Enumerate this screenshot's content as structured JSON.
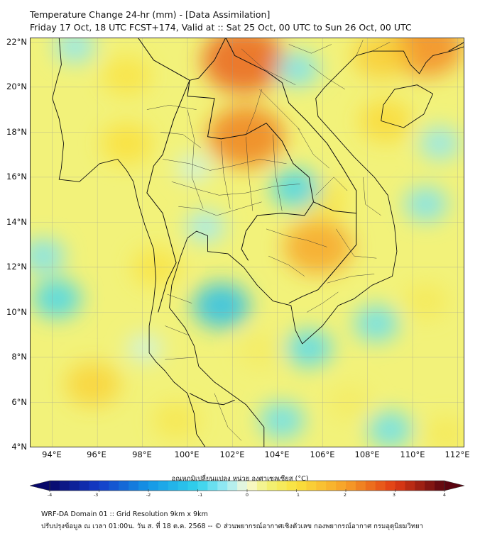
{
  "title_line1": "Temperature Change 24-hr (mm) - [Data Assimilation]",
  "title_line2": "Friday 17 Oct, 18 UTC FCST+174, Valid at :: Sat 25 Oct, 00 UTC to Sun 26 Oct, 00 UTC",
  "lat_labels": [
    "22°N",
    "20°N",
    "18°N",
    "16°N",
    "14°N",
    "12°N",
    "10°N",
    "8°N",
    "6°N",
    "4°N"
  ],
  "lon_labels": [
    "94°E",
    "96°E",
    "98°E",
    "100°E",
    "102°E",
    "104°E",
    "106°E",
    "108°E",
    "110°E",
    "112°E"
  ],
  "colorbar": {
    "title": "อุณหภูมิเปลี่ยนแปลง หน่วย องศาเซลเซียส (°C)",
    "tick_labels": [
      "-4",
      "-3",
      "-2",
      "-1",
      "0",
      "1",
      "2",
      "3",
      "4"
    ],
    "min": -4,
    "max": 4
  },
  "footer_line1": "WRF-DA Domain 01 :: Grid Resolution 9km x 9km",
  "footer_line2": "ปรับปรุงข้อมูล ณ เวลา 01:00น. วัน ส. ที่ 18 ต.ค. 2568 -- © ส่วนพยากรณ์อากาศเชิงตัวเลข กองพยากรณ์อากาศ กรมอุตุนิยมวิทยา",
  "map": {
    "lon_range": [
      93,
      112.3
    ],
    "lat_range": [
      4,
      22.2
    ],
    "anomalies": [
      {
        "lon": 102.5,
        "lat": 21.2,
        "value": 2.6
      },
      {
        "lon": 102.6,
        "lat": 17.8,
        "value": 2.3
      },
      {
        "lon": 105.8,
        "lat": 12.9,
        "value": 1.9
      },
      {
        "lon": 110.6,
        "lat": 21.8,
        "value": 2.2
      },
      {
        "lon": 108.6,
        "lat": 21.4,
        "value": 1.3
      },
      {
        "lon": 108.8,
        "lat": 18.5,
        "value": 1.1
      },
      {
        "lon": 97.3,
        "lat": 17.5,
        "value": 1.0
      },
      {
        "lon": 97.3,
        "lat": 20.5,
        "value": 0.9
      },
      {
        "lon": 98.6,
        "lat": 12.0,
        "value": 0.9
      },
      {
        "lon": 95.8,
        "lat": 6.8,
        "value": 1.2
      },
      {
        "lon": 103.2,
        "lat": 8.3,
        "value": 0.6
      },
      {
        "lon": 107.2,
        "lat": 6.0,
        "value": 0.6
      },
      {
        "lon": 110.6,
        "lat": 10.5,
        "value": 0.7
      },
      {
        "lon": 106.0,
        "lat": 15.0,
        "value": 0.9
      },
      {
        "lon": 99.5,
        "lat": 5.2,
        "value": 0.8
      },
      {
        "lon": 111.5,
        "lat": 4.6,
        "value": 0.7
      },
      {
        "lon": 101.5,
        "lat": 10.3,
        "value": -1.3
      },
      {
        "lon": 104.8,
        "lat": 15.5,
        "value": -0.9
      },
      {
        "lon": 94.2,
        "lat": 10.6,
        "value": -0.9
      },
      {
        "lon": 93.6,
        "lat": 12.5,
        "value": -0.6
      },
      {
        "lon": 105.4,
        "lat": 8.4,
        "value": -0.8
      },
      {
        "lon": 108.4,
        "lat": 9.5,
        "value": -0.7
      },
      {
        "lon": 104.2,
        "lat": 5.2,
        "value": -0.7
      },
      {
        "lon": 109.0,
        "lat": 4.8,
        "value": -0.7
      },
      {
        "lon": 111.2,
        "lat": 17.5,
        "value": -0.5
      },
      {
        "lon": 110.6,
        "lat": 14.8,
        "value": -0.6
      },
      {
        "lon": 95.0,
        "lat": 21.8,
        "value": -0.5
      },
      {
        "lon": 104.9,
        "lat": 20.8,
        "value": -0.6
      },
      {
        "lon": 100.8,
        "lat": 13.8,
        "value": -0.4
      },
      {
        "lon": 100.3,
        "lat": 16.4,
        "value": -0.2
      },
      {
        "lon": 98.1,
        "lat": 8.4,
        "value": -0.2
      }
    ],
    "coastlines": [
      [
        [
          94.3,
          22.2
        ],
        [
          94.4,
          21.0
        ],
        [
          94.2,
          20.3
        ],
        [
          94.0,
          19.5
        ],
        [
          94.3,
          18.6
        ],
        [
          94.5,
          17.5
        ],
        [
          94.4,
          16.4
        ],
        [
          94.3,
          15.9
        ],
        [
          95.2,
          15.8
        ],
        [
          96.1,
          16.6
        ],
        [
          96.9,
          16.8
        ],
        [
          97.3,
          16.3
        ],
        [
          97.6,
          15.8
        ],
        [
          97.8,
          14.9
        ],
        [
          98.1,
          13.9
        ],
        [
          98.5,
          12.8
        ],
        [
          98.6,
          11.5
        ],
        [
          98.5,
          10.5
        ],
        [
          98.3,
          9.4
        ],
        [
          98.3,
          8.2
        ],
        [
          98.6,
          7.8
        ],
        [
          99.0,
          7.4
        ],
        [
          99.4,
          6.9
        ],
        [
          100.0,
          6.4
        ],
        [
          100.3,
          5.5
        ],
        [
          100.4,
          4.6
        ],
        [
          100.8,
          4.0
        ]
      ],
      [
        [
          103.4,
          4.0
        ],
        [
          103.4,
          4.9
        ],
        [
          102.6,
          5.9
        ],
        [
          101.9,
          6.4
        ],
        [
          101.2,
          6.9
        ],
        [
          100.5,
          7.6
        ],
        [
          100.3,
          8.5
        ],
        [
          99.9,
          9.3
        ],
        [
          99.2,
          10.2
        ],
        [
          99.3,
          11.2
        ],
        [
          99.7,
          12.5
        ],
        [
          100.0,
          13.3
        ],
        [
          100.4,
          13.6
        ],
        [
          100.9,
          13.4
        ],
        [
          100.9,
          12.7
        ],
        [
          101.8,
          12.6
        ],
        [
          102.5,
          12.0
        ],
        [
          103.1,
          11.2
        ],
        [
          103.8,
          10.5
        ],
        [
          104.6,
          10.3
        ],
        [
          104.8,
          9.2
        ],
        [
          105.1,
          8.6
        ],
        [
          106.0,
          9.4
        ],
        [
          106.7,
          10.3
        ],
        [
          107.4,
          10.6
        ],
        [
          108.2,
          11.2
        ],
        [
          109.1,
          11.6
        ],
        [
          109.3,
          12.7
        ],
        [
          109.2,
          13.8
        ],
        [
          108.9,
          15.2
        ],
        [
          108.3,
          16.0
        ],
        [
          107.4,
          16.9
        ],
        [
          106.6,
          17.8
        ],
        [
          105.8,
          18.7
        ],
        [
          105.7,
          19.5
        ],
        [
          106.1,
          20.0
        ],
        [
          106.8,
          20.7
        ],
        [
          107.5,
          21.4
        ],
        [
          108.2,
          21.6
        ],
        [
          108.7,
          21.6
        ],
        [
          109.6,
          21.6
        ],
        [
          109.9,
          21.0
        ],
        [
          110.3,
          20.6
        ],
        [
          110.6,
          21.1
        ],
        [
          110.9,
          21.4
        ],
        [
          111.7,
          21.6
        ],
        [
          112.3,
          21.8
        ]
      ],
      [
        [
          108.7,
          19.2
        ],
        [
          108.6,
          18.5
        ],
        [
          109.6,
          18.2
        ],
        [
          110.5,
          18.8
        ],
        [
          110.9,
          19.7
        ],
        [
          110.2,
          20.1
        ],
        [
          109.2,
          19.9
        ],
        [
          108.7,
          19.2
        ]
      ]
    ],
    "borders": [
      [
        [
          97.8,
          22.2
        ],
        [
          98.5,
          21.2
        ],
        [
          100.1,
          20.3
        ],
        [
          100.5,
          20.4
        ],
        [
          101.2,
          21.2
        ],
        [
          101.7,
          22.2
        ]
      ],
      [
        [
          100.1,
          20.3
        ],
        [
          100.0,
          19.6
        ],
        [
          101.2,
          19.5
        ],
        [
          100.9,
          17.8
        ],
        [
          101.5,
          17.7
        ],
        [
          102.6,
          17.9
        ],
        [
          103.5,
          18.4
        ],
        [
          104.2,
          17.6
        ],
        [
          104.7,
          16.6
        ],
        [
          105.4,
          16.0
        ],
        [
          105.6,
          14.9
        ],
        [
          105.2,
          14.3
        ],
        [
          104.2,
          14.4
        ],
        [
          103.1,
          14.3
        ],
        [
          102.6,
          13.6
        ],
        [
          102.4,
          12.8
        ],
        [
          102.7,
          12.3
        ]
      ],
      [
        [
          105.6,
          14.9
        ],
        [
          106.5,
          14.5
        ],
        [
          107.5,
          14.4
        ],
        [
          107.5,
          13.0
        ],
        [
          106.4,
          11.7
        ],
        [
          105.8,
          11.0
        ],
        [
          105.1,
          10.7
        ],
        [
          104.5,
          10.4
        ]
      ],
      [
        [
          101.7,
          22.2
        ],
        [
          102.1,
          21.4
        ],
        [
          102.9,
          21.0
        ],
        [
          103.5,
          20.7
        ],
        [
          104.2,
          20.2
        ],
        [
          104.5,
          19.3
        ],
        [
          105.3,
          18.5
        ],
        [
          106.2,
          17.5
        ],
        [
          106.9,
          16.4
        ],
        [
          107.5,
          15.4
        ],
        [
          107.5,
          14.4
        ]
      ],
      [
        [
          98.5,
          16.5
        ],
        [
          98.9,
          17.0
        ],
        [
          99.4,
          18.6
        ],
        [
          100.1,
          20.3
        ]
      ],
      [
        [
          98.5,
          16.5
        ],
        [
          98.2,
          15.3
        ],
        [
          98.9,
          14.4
        ],
        [
          99.5,
          12.2
        ],
        [
          99.1,
          11.4
        ],
        [
          98.7,
          10.0
        ]
      ],
      [
        [
          100.1,
          6.4
        ],
        [
          100.9,
          6.0
        ],
        [
          101.6,
          5.9
        ],
        [
          102.1,
          6.1
        ]
      ],
      [
        [
          112.3,
          22.0
        ],
        [
          111.6,
          21.6
        ]
      ]
    ],
    "provinces": [
      [
        [
          98.2,
          19.0
        ],
        [
          99.2,
          19.2
        ],
        [
          100.4,
          19.0
        ]
      ],
      [
        [
          98.8,
          18.0
        ],
        [
          99.8,
          17.9
        ],
        [
          100.6,
          17.3
        ]
      ],
      [
        [
          98.9,
          16.8
        ],
        [
          100.1,
          16.6
        ],
        [
          101.0,
          16.3
        ],
        [
          102.0,
          16.5
        ],
        [
          103.2,
          16.8
        ],
        [
          104.4,
          16.6
        ]
      ],
      [
        [
          99.3,
          15.8
        ],
        [
          100.3,
          15.5
        ],
        [
          101.4,
          15.2
        ],
        [
          102.6,
          15.3
        ],
        [
          103.9,
          15.6
        ],
        [
          105.0,
          15.7
        ]
      ],
      [
        [
          99.6,
          14.7
        ],
        [
          100.5,
          14.6
        ],
        [
          101.3,
          14.3
        ],
        [
          102.3,
          14.6
        ],
        [
          103.3,
          14.9
        ]
      ],
      [
        [
          100.0,
          19.0
        ],
        [
          100.3,
          17.7
        ],
        [
          100.2,
          16.0
        ],
        [
          100.7,
          14.6
        ]
      ],
      [
        [
          101.5,
          17.6
        ],
        [
          101.6,
          16.2
        ],
        [
          101.9,
          14.6
        ]
      ],
      [
        [
          102.6,
          17.8
        ],
        [
          102.7,
          16.3
        ],
        [
          102.9,
          14.5
        ]
      ],
      [
        [
          103.8,
          17.9
        ],
        [
          103.9,
          16.2
        ],
        [
          104.2,
          14.5
        ]
      ],
      [
        [
          99.1,
          10.8
        ],
        [
          100.2,
          10.4
        ]
      ],
      [
        [
          99.0,
          9.4
        ],
        [
          100.0,
          9.0
        ]
      ],
      [
        [
          99.0,
          7.9
        ],
        [
          100.3,
          8.0
        ]
      ],
      [
        [
          101.2,
          6.4
        ],
        [
          101.8,
          4.9
        ],
        [
          102.4,
          4.3
        ]
      ],
      [
        [
          102.4,
          21.7
        ],
        [
          103.4,
          20.8
        ],
        [
          104.8,
          20.1
        ]
      ],
      [
        [
          103.2,
          19.9
        ],
        [
          104.1,
          19.0
        ],
        [
          105.0,
          18.1
        ]
      ],
      [
        [
          102.6,
          17.9
        ],
        [
          103.0,
          18.9
        ],
        [
          103.3,
          19.9
        ]
      ],
      [
        [
          104.9,
          18.2
        ],
        [
          105.6,
          17.0
        ],
        [
          106.3,
          16.4
        ]
      ],
      [
        [
          105.7,
          15.2
        ],
        [
          106.5,
          16.0
        ],
        [
          107.1,
          15.4
        ]
      ],
      [
        [
          103.5,
          13.7
        ],
        [
          104.4,
          13.4
        ],
        [
          105.3,
          13.2
        ],
        [
          106.2,
          12.9
        ]
      ],
      [
        [
          103.6,
          12.5
        ],
        [
          104.5,
          12.1
        ],
        [
          105.2,
          11.6
        ]
      ],
      [
        [
          106.6,
          13.7
        ],
        [
          107.4,
          12.5
        ],
        [
          108.4,
          12.4
        ]
      ],
      [
        [
          107.8,
          16.0
        ],
        [
          107.9,
          14.8
        ],
        [
          108.6,
          14.3
        ]
      ],
      [
        [
          106.2,
          11.3
        ],
        [
          107.3,
          11.6
        ],
        [
          108.3,
          11.7
        ]
      ],
      [
        [
          105.3,
          10.0
        ],
        [
          106.0,
          10.4
        ],
        [
          106.7,
          10.9
        ]
      ],
      [
        [
          105.4,
          21.0
        ],
        [
          106.2,
          20.4
        ],
        [
          107.0,
          19.9
        ]
      ],
      [
        [
          104.5,
          21.9
        ],
        [
          105.5,
          21.5
        ],
        [
          106.4,
          21.9
        ]
      ],
      [
        [
          107.5,
          21.4
        ],
        [
          107.8,
          22.1
        ]
      ],
      [
        [
          108.2,
          21.6
        ],
        [
          109.0,
          22.0
        ]
      ]
    ]
  }
}
